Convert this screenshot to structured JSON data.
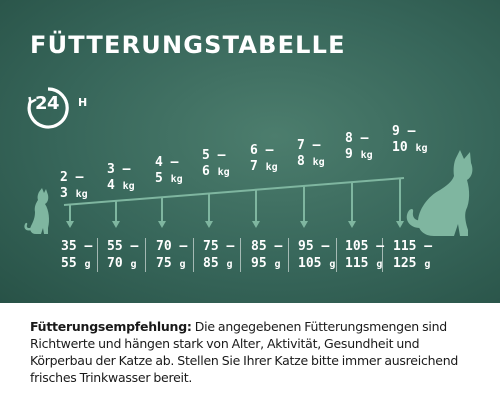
{
  "title": "FÜTTERUNGSTABELLE",
  "badge": {
    "number": "24",
    "suffix": "H",
    "icon": "24h-clock-icon"
  },
  "weights": [
    {
      "line1": "2 –",
      "line2": "3",
      "unit": "kg"
    },
    {
      "line1": "3 –",
      "line2": "4",
      "unit": "kg"
    },
    {
      "line1": "4 –",
      "line2": "5",
      "unit": "kg"
    },
    {
      "line1": "5 –",
      "line2": "6",
      "unit": "kg"
    },
    {
      "line1": "6 –",
      "line2": "7",
      "unit": "kg"
    },
    {
      "line1": "7 –",
      "line2": "8",
      "unit": "kg"
    },
    {
      "line1": "8 –",
      "line2": "9",
      "unit": "kg"
    },
    {
      "line1": "9 –",
      "line2": "10",
      "unit": "kg"
    }
  ],
  "portions": [
    {
      "line1": "35 –",
      "line2": "55",
      "unit": "g"
    },
    {
      "line1": "55 –",
      "line2": "70",
      "unit": "g"
    },
    {
      "line1": "70 –",
      "line2": "75",
      "unit": "g"
    },
    {
      "line1": "75 –",
      "line2": "85",
      "unit": "g"
    },
    {
      "line1": "85 –",
      "line2": "95",
      "unit": "g"
    },
    {
      "line1": "95 –",
      "line2": "105",
      "unit": "g"
    },
    {
      "line1": "105 –",
      "line2": "115",
      "unit": "g"
    },
    {
      "line1": "115 –",
      "line2": "125",
      "unit": "g"
    }
  ],
  "note": {
    "label": "Fütterungsempfehlung:",
    "text": " Die angegebenen Fütterungsmengen sind Richtwerte und hängen stark von Alter, Aktivität, Gesundheit und Körperbau der Katze ab. Stellen Sie Ihrer Katze bitte immer ausreichend frisches Trinkwasser bereit."
  },
  "colors": {
    "background": "#37665a",
    "accent": "#7fb6a0",
    "text_light": "#ffffff",
    "text_dark": "#1a1a1a"
  }
}
